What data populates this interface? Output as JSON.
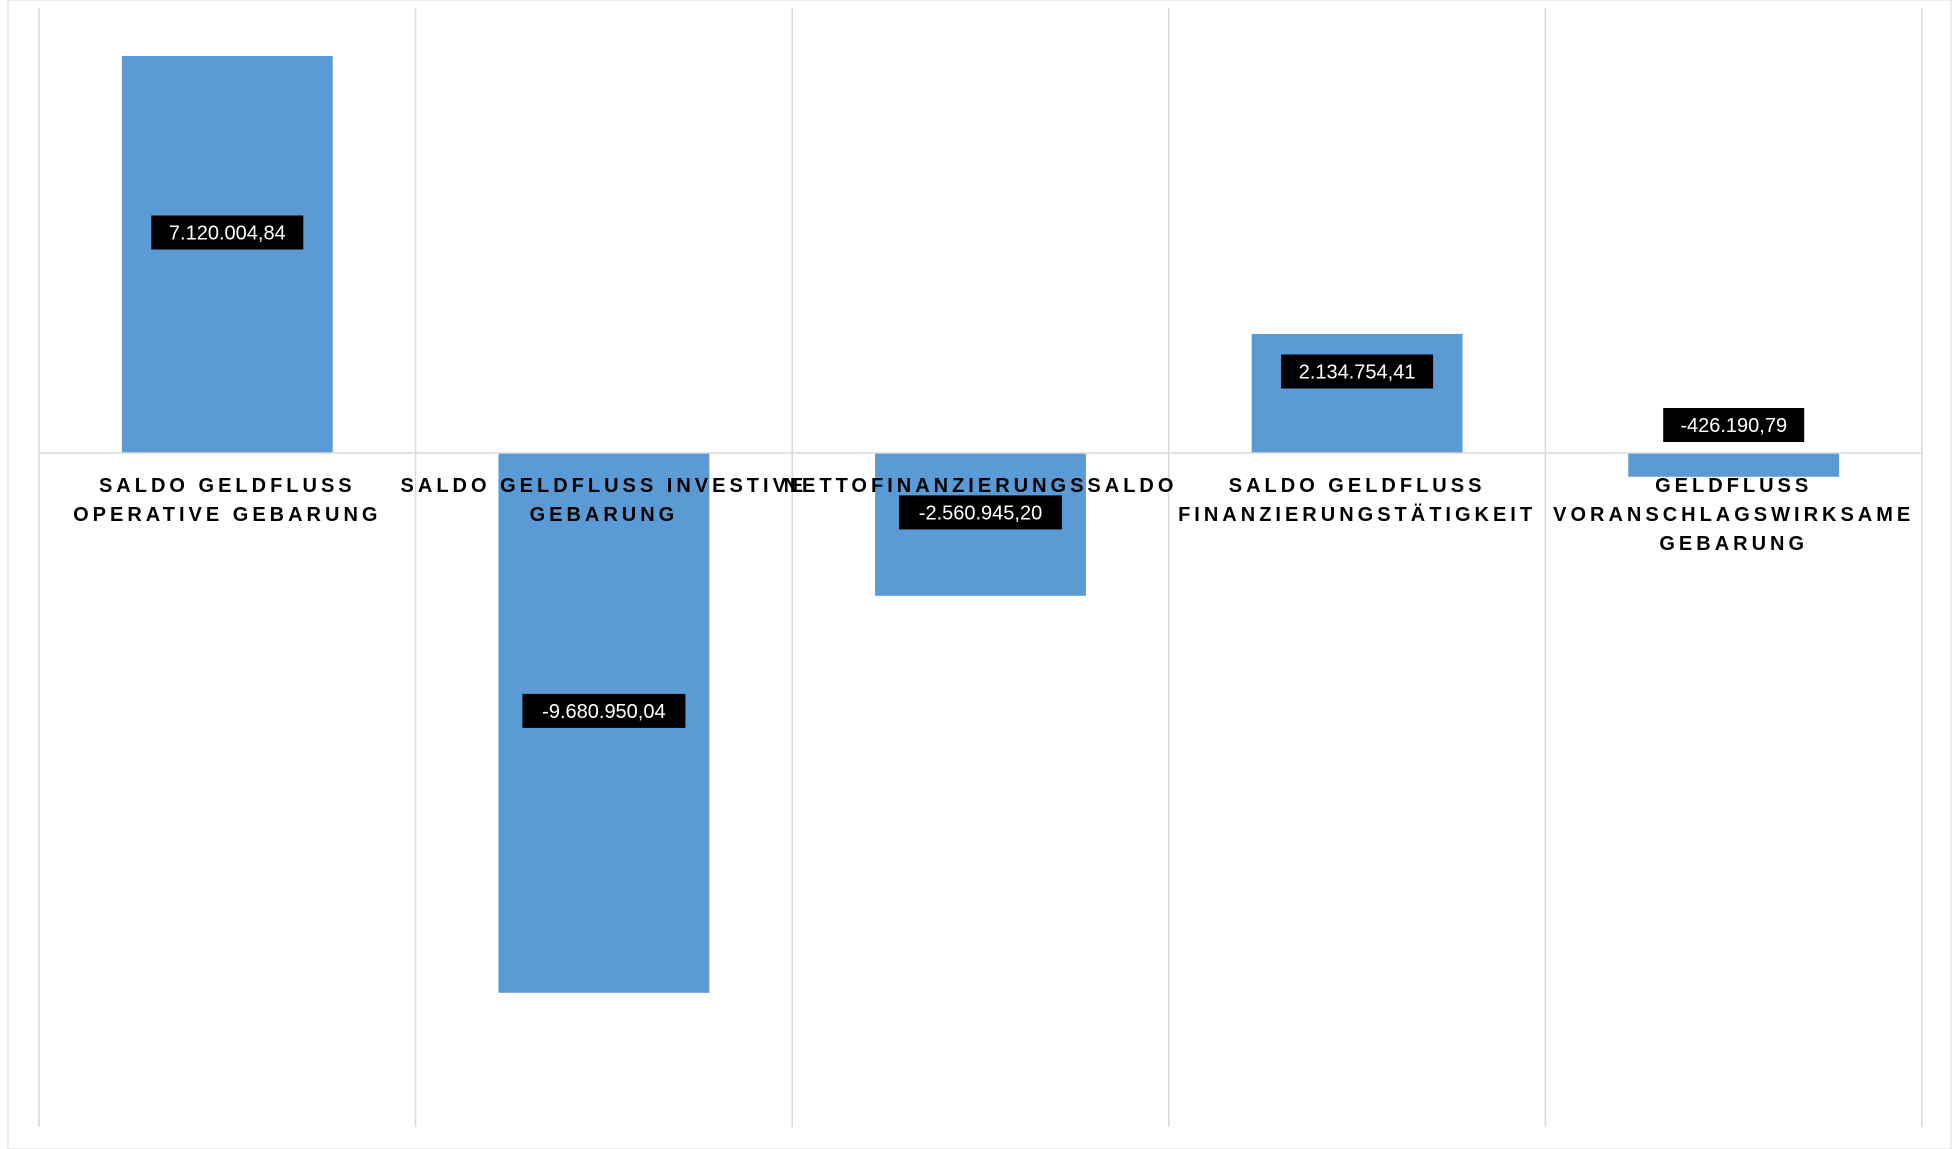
{
  "chart_data": {
    "type": "bar",
    "categories": [
      [
        "SALDO GELDFLUSS",
        "OPERATIVE GEBARUNG"
      ],
      [
        "SALDO GELDFLUSS INVESTIVE",
        "GEBARUNG"
      ],
      [
        "NETTOFINANZIERUNGSSALDO"
      ],
      [
        "SALDO GELDFLUSS",
        "FINANZIERUNGSTÄTIGKEIT"
      ],
      [
        "GELDFLUSS",
        "VORANSCHLAGSWIRKSAME",
        "GEBARUNG"
      ]
    ],
    "values": [
      7120004.84,
      -9680950.04,
      -2560945.2,
      2134754.41,
      -426190.79
    ],
    "data_labels": [
      "7.120.004,84",
      "-9.680.950,04",
      "-2.560.945,20",
      "2.134.754,41",
      "-426.190,79"
    ],
    "title": "",
    "xlabel": "",
    "ylabel": "",
    "ylim": [
      -12000000,
      8000000
    ],
    "grid": true,
    "legend": "none",
    "colors": {
      "bar": "#5B9BD5",
      "gridline": "#D9D9D9",
      "label_bg": "#000000",
      "label_text": "#FFFFFF",
      "category_text": "#000000"
    }
  }
}
